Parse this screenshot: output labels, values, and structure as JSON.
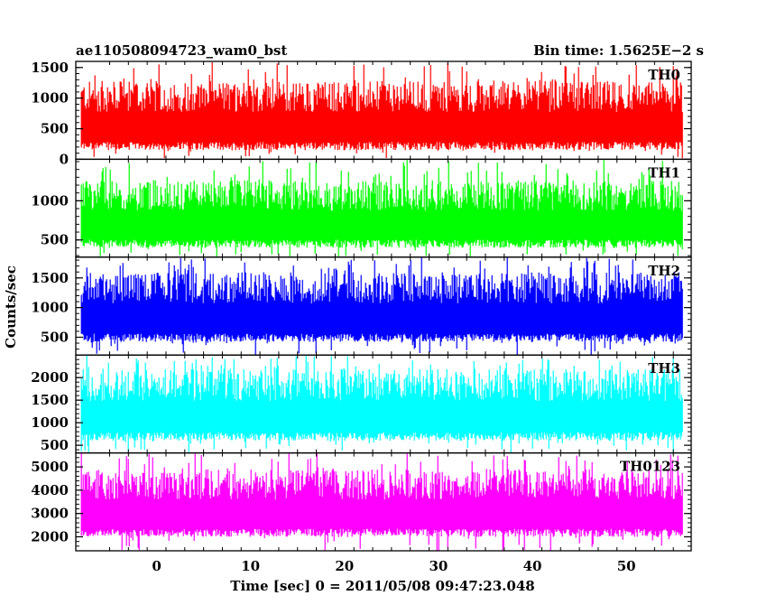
{
  "header": {
    "obs_id": "ae110508094723_wam0_bst",
    "bin_time": "Bin time: 1.5625E−2 s"
  },
  "chart_data": {
    "type": "line",
    "xlabel": "Time [sec] 0 = 2011/05/08 09:47:23.048",
    "ylabel": "Counts/sec",
    "xlim": [
      -8.6,
      56.9
    ],
    "x_ticks": [
      0,
      10,
      20,
      30,
      40,
      50
    ],
    "x_range_data": [
      -8.0,
      56.0
    ],
    "panels": [
      {
        "name": "TH0",
        "color": "#ff0000",
        "ylim": [
          0,
          1600
        ],
        "y_ticks": [
          0,
          500,
          1000,
          1500
        ],
        "band": [
          150,
          1280
        ],
        "spike_high": 1600,
        "spike_low": 0
      },
      {
        "name": "TH1",
        "color": "#00ff00",
        "ylim": [
          280,
          1530
        ],
        "y_ticks": [
          500,
          1000
        ],
        "band": [
          400,
          1260
        ],
        "spike_high": 1530,
        "spike_low": 280
      },
      {
        "name": "TH2",
        "color": "#0000ff",
        "ylim": [
          200,
          1850
        ],
        "y_ticks": [
          500,
          1000,
          1500
        ],
        "band": [
          420,
          1600
        ],
        "spike_high": 1850,
        "spike_low": 200
      },
      {
        "name": "TH3",
        "color": "#00ffff",
        "ylim": [
          330,
          2500
        ],
        "y_ticks": [
          500,
          1000,
          1500,
          2000
        ],
        "band": [
          600,
          2200
        ],
        "spike_high": 2500,
        "spike_low": 330
      },
      {
        "name": "TH0123",
        "color": "#ff00ff",
        "ylim": [
          1400,
          5600
        ],
        "y_ticks": [
          2000,
          3000,
          4000,
          5000
        ],
        "band": [
          2000,
          4900
        ],
        "spike_high": 5600,
        "spike_low": 1400
      }
    ]
  }
}
